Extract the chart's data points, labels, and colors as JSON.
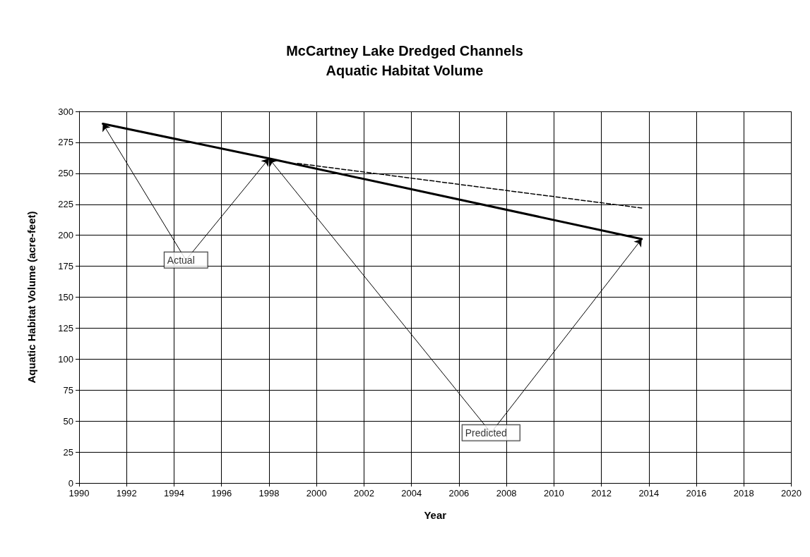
{
  "chart_data": {
    "type": "line",
    "title": "McCartney Lake Dredged Channels\nAquatic Habitat Volume",
    "xlabel": "Year",
    "ylabel": "Aquatic Habitat Volume (acre-feet)",
    "series": [
      {
        "x": [
          1991,
          1998,
          2013.7
        ],
        "values": [
          290,
          262,
          197
        ],
        "color": "#000000",
        "line_style": "solid"
      },
      {
        "x": [
          1999.2,
          2013.7
        ],
        "values": [
          258,
          222
        ],
        "color": "#000000",
        "line_style": "dashed"
      }
    ],
    "annotations": [
      {
        "text": "Actual",
        "x": 1991,
        "y": 290
      },
      {
        "text": "Predicted",
        "x": 2013.7,
        "y": 197
      }
    ],
    "xlim": [
      1990,
      2020
    ],
    "xticks": [
      1990,
      1992,
      1994,
      1996,
      1998,
      2000,
      2002,
      2004,
      2006,
      2008,
      2010,
      2012,
      2014,
      2016,
      2018,
      2020
    ],
    "ylim": [
      0,
      300
    ],
    "yticks": [
      0,
      25,
      50,
      75,
      100,
      125,
      150,
      175,
      200,
      225,
      250,
      275,
      300
    ],
    "grid": true,
    "marker": "none"
  }
}
